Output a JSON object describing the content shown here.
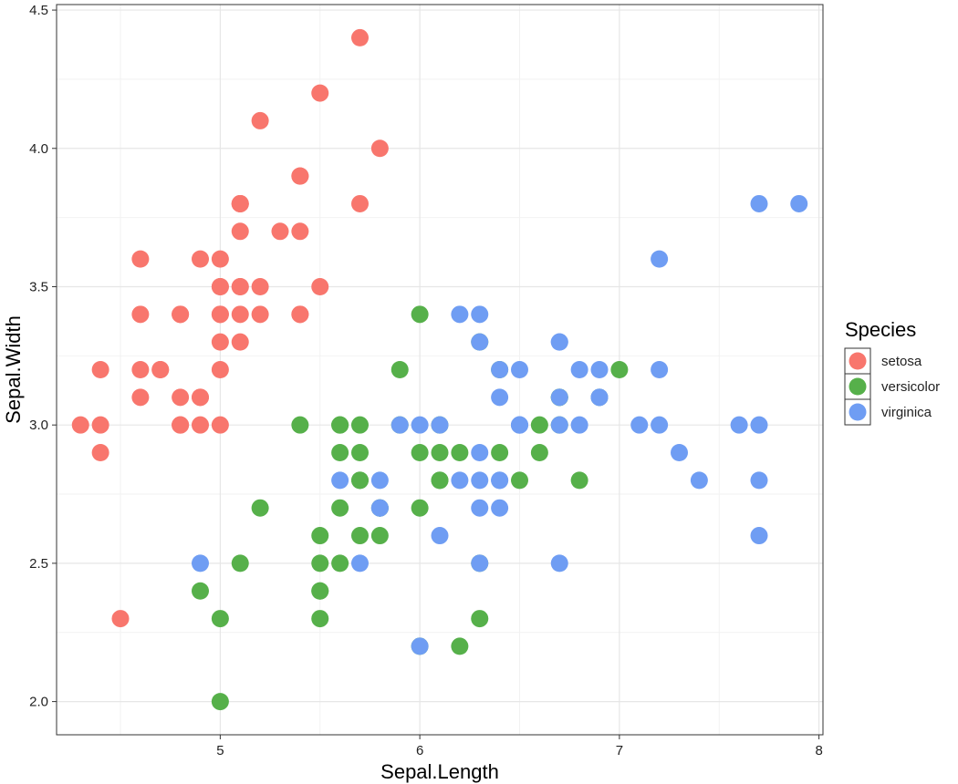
{
  "chart_data": {
    "type": "scatter",
    "title": "",
    "xlabel": "Sepal.Length",
    "ylabel": "Sepal.Width",
    "xlim": [
      4.18,
      8.02
    ],
    "ylim": [
      1.88,
      4.52
    ],
    "xticks": [
      5,
      6,
      7,
      8
    ],
    "xtick_labels": [
      "5",
      "6",
      "7",
      "8"
    ],
    "yticks": [
      2.0,
      2.5,
      3.0,
      3.5,
      4.0,
      4.5
    ],
    "ytick_labels": [
      "2.0",
      "2.5",
      "3.0",
      "3.5",
      "4.0",
      "4.5"
    ],
    "grid": true,
    "legend": {
      "title": "Species",
      "position": "right"
    },
    "series": [
      {
        "name": "setosa",
        "color": "#F8766D",
        "points": [
          [
            5.1,
            3.5
          ],
          [
            4.9,
            3.0
          ],
          [
            4.7,
            3.2
          ],
          [
            4.6,
            3.1
          ],
          [
            5.0,
            3.6
          ],
          [
            5.4,
            3.9
          ],
          [
            4.6,
            3.4
          ],
          [
            5.0,
            3.4
          ],
          [
            4.4,
            2.9
          ],
          [
            4.9,
            3.1
          ],
          [
            5.4,
            3.7
          ],
          [
            4.8,
            3.4
          ],
          [
            4.8,
            3.0
          ],
          [
            4.3,
            3.0
          ],
          [
            5.8,
            4.0
          ],
          [
            5.7,
            4.4
          ],
          [
            5.4,
            3.9
          ],
          [
            5.1,
            3.5
          ],
          [
            5.7,
            3.8
          ],
          [
            5.1,
            3.8
          ],
          [
            5.4,
            3.4
          ],
          [
            5.1,
            3.7
          ],
          [
            4.6,
            3.6
          ],
          [
            5.1,
            3.3
          ],
          [
            4.8,
            3.4
          ],
          [
            5.0,
            3.0
          ],
          [
            5.0,
            3.4
          ],
          [
            5.2,
            3.5
          ],
          [
            5.2,
            3.4
          ],
          [
            4.7,
            3.2
          ],
          [
            4.8,
            3.1
          ],
          [
            5.4,
            3.4
          ],
          [
            5.2,
            4.1
          ],
          [
            5.5,
            4.2
          ],
          [
            4.9,
            3.1
          ],
          [
            5.0,
            3.2
          ],
          [
            5.5,
            3.5
          ],
          [
            4.9,
            3.6
          ],
          [
            4.4,
            3.0
          ],
          [
            5.1,
            3.4
          ],
          [
            5.0,
            3.5
          ],
          [
            4.5,
            2.3
          ],
          [
            4.4,
            3.2
          ],
          [
            5.0,
            3.5
          ],
          [
            5.1,
            3.8
          ],
          [
            4.8,
            3.0
          ],
          [
            5.1,
            3.8
          ],
          [
            4.6,
            3.2
          ],
          [
            5.3,
            3.7
          ],
          [
            5.0,
            3.3
          ]
        ]
      },
      {
        "name": "versicolor",
        "color": "#56B04A",
        "points": [
          [
            7.0,
            3.2
          ],
          [
            6.4,
            3.2
          ],
          [
            6.9,
            3.1
          ],
          [
            5.5,
            2.3
          ],
          [
            6.5,
            2.8
          ],
          [
            5.7,
            2.8
          ],
          [
            6.3,
            3.3
          ],
          [
            4.9,
            2.4
          ],
          [
            6.6,
            2.9
          ],
          [
            5.2,
            2.7
          ],
          [
            5.0,
            2.0
          ],
          [
            5.9,
            3.0
          ],
          [
            6.0,
            2.2
          ],
          [
            6.1,
            2.9
          ],
          [
            5.6,
            2.9
          ],
          [
            6.7,
            3.1
          ],
          [
            5.6,
            3.0
          ],
          [
            5.8,
            2.7
          ],
          [
            6.2,
            2.2
          ],
          [
            5.6,
            2.5
          ],
          [
            5.9,
            3.2
          ],
          [
            6.1,
            2.8
          ],
          [
            6.3,
            2.5
          ],
          [
            6.1,
            2.8
          ],
          [
            6.4,
            2.9
          ],
          [
            6.6,
            3.0
          ],
          [
            6.8,
            2.8
          ],
          [
            6.7,
            3.0
          ],
          [
            6.0,
            2.9
          ],
          [
            5.7,
            2.6
          ],
          [
            5.5,
            2.4
          ],
          [
            5.5,
            2.4
          ],
          [
            5.8,
            2.7
          ],
          [
            6.0,
            2.7
          ],
          [
            5.4,
            3.0
          ],
          [
            6.0,
            3.4
          ],
          [
            6.7,
            3.1
          ],
          [
            6.3,
            2.3
          ],
          [
            5.6,
            3.0
          ],
          [
            5.5,
            2.5
          ],
          [
            5.5,
            2.6
          ],
          [
            6.1,
            3.0
          ],
          [
            5.8,
            2.6
          ],
          [
            5.0,
            2.3
          ],
          [
            5.6,
            2.7
          ],
          [
            5.7,
            3.0
          ],
          [
            5.7,
            2.9
          ],
          [
            6.2,
            2.9
          ],
          [
            5.1,
            2.5
          ],
          [
            5.7,
            2.8
          ]
        ]
      },
      {
        "name": "virginica",
        "color": "#6F9DF3",
        "points": [
          [
            6.3,
            3.3
          ],
          [
            5.8,
            2.7
          ],
          [
            7.1,
            3.0
          ],
          [
            6.3,
            2.9
          ],
          [
            6.5,
            3.0
          ],
          [
            7.6,
            3.0
          ],
          [
            4.9,
            2.5
          ],
          [
            7.3,
            2.9
          ],
          [
            6.7,
            2.5
          ],
          [
            7.2,
            3.6
          ],
          [
            6.5,
            3.2
          ],
          [
            6.4,
            2.7
          ],
          [
            6.8,
            3.0
          ],
          [
            5.7,
            2.5
          ],
          [
            5.8,
            2.8
          ],
          [
            6.4,
            3.2
          ],
          [
            6.5,
            3.0
          ],
          [
            7.7,
            3.8
          ],
          [
            7.7,
            2.6
          ],
          [
            6.0,
            2.2
          ],
          [
            6.9,
            3.2
          ],
          [
            5.6,
            2.8
          ],
          [
            7.7,
            2.8
          ],
          [
            6.3,
            2.7
          ],
          [
            6.7,
            3.3
          ],
          [
            7.2,
            3.2
          ],
          [
            6.2,
            2.8
          ],
          [
            6.1,
            3.0
          ],
          [
            6.4,
            2.8
          ],
          [
            7.2,
            3.0
          ],
          [
            7.4,
            2.8
          ],
          [
            7.9,
            3.8
          ],
          [
            6.4,
            2.8
          ],
          [
            6.3,
            2.8
          ],
          [
            6.1,
            2.6
          ],
          [
            7.7,
            3.0
          ],
          [
            6.3,
            3.4
          ],
          [
            6.4,
            3.1
          ],
          [
            6.0,
            3.0
          ],
          [
            6.9,
            3.1
          ],
          [
            6.7,
            3.1
          ],
          [
            6.9,
            3.1
          ],
          [
            5.8,
            2.7
          ],
          [
            6.8,
            3.2
          ],
          [
            6.7,
            3.3
          ],
          [
            6.7,
            3.0
          ],
          [
            6.3,
            2.5
          ],
          [
            6.5,
            3.0
          ],
          [
            6.2,
            3.4
          ],
          [
            5.9,
            3.0
          ]
        ]
      }
    ]
  }
}
